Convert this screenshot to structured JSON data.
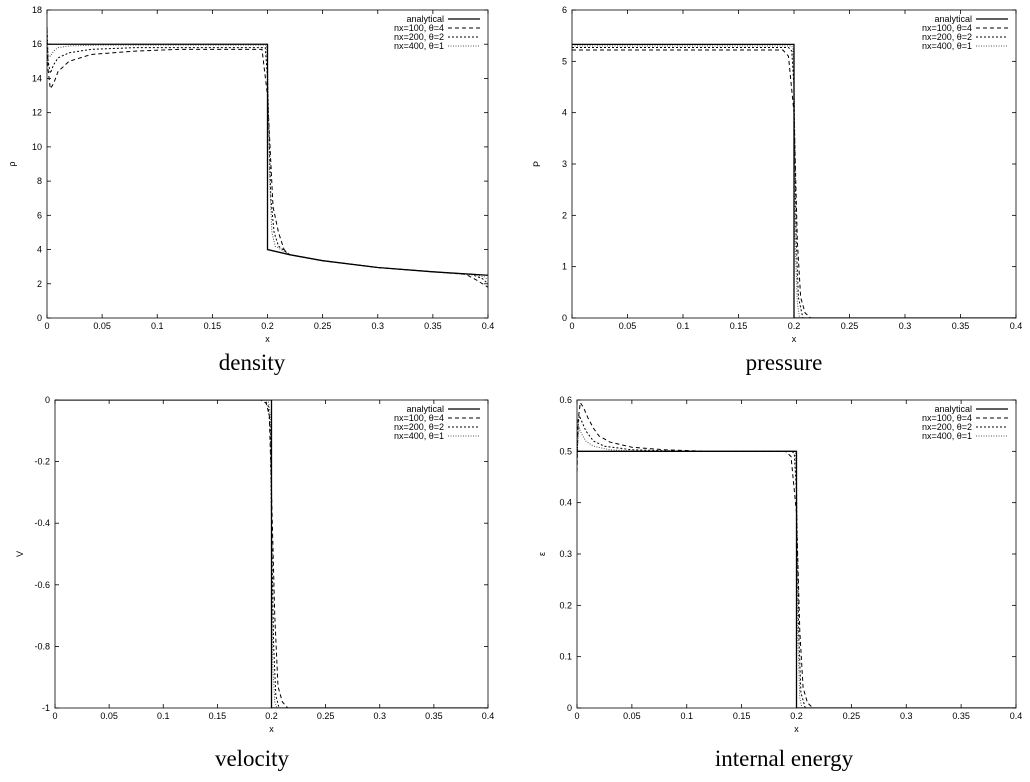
{
  "legend": [
    "analytical",
    "nx=100, θ=4",
    "nx=200, θ=2",
    "nx=400, θ=1"
  ],
  "chart_data": [
    {
      "type": "line",
      "caption": "density",
      "xlabel": "x",
      "ylabel": "ρ",
      "xlim": [
        0,
        0.4
      ],
      "ylim": [
        0,
        18
      ],
      "xticks": [
        "0",
        "0.05",
        "0.1",
        "0.15",
        "0.2",
        "0.25",
        "0.3",
        "0.35",
        "0.4"
      ],
      "yticks": [
        "0",
        "2",
        "4",
        "6",
        "8",
        "10",
        "12",
        "14",
        "16",
        "18"
      ],
      "legend_position": "top-right",
      "series": [
        {
          "name": "analytical",
          "x": [
            0,
            0.2,
            0.2,
            0.22,
            0.25,
            0.3,
            0.35,
            0.4
          ],
          "y": [
            16,
            16,
            4,
            3.7,
            3.35,
            2.95,
            2.7,
            2.5
          ]
        },
        {
          "name": "nx=100, θ=4",
          "x": [
            0,
            0.001,
            0.003,
            0.006,
            0.01,
            0.02,
            0.04,
            0.08,
            0.12,
            0.16,
            0.195,
            0.2,
            0.205,
            0.21,
            0.215,
            0.22,
            0.25,
            0.3,
            0.35,
            0.38,
            0.39,
            0.4
          ],
          "y": [
            17,
            14.5,
            13.4,
            13.7,
            14.4,
            15,
            15.4,
            15.6,
            15.7,
            15.7,
            15.7,
            13,
            6.5,
            5,
            4,
            3.7,
            3.35,
            2.95,
            2.7,
            2.55,
            2.2,
            1.8
          ]
        },
        {
          "name": "nx=200, θ=2",
          "x": [
            0,
            0.001,
            0.003,
            0.006,
            0.01,
            0.02,
            0.04,
            0.08,
            0.12,
            0.16,
            0.198,
            0.2,
            0.203,
            0.206,
            0.21,
            0.22,
            0.25,
            0.3,
            0.35,
            0.385,
            0.395,
            0.4
          ],
          "y": [
            17,
            15,
            14.3,
            14.8,
            15.2,
            15.5,
            15.7,
            15.8,
            15.8,
            15.8,
            15.8,
            14,
            7,
            5,
            4.2,
            3.7,
            3.35,
            2.95,
            2.7,
            2.55,
            2.3,
            2.0
          ]
        },
        {
          "name": "nx=400, θ=1",
          "x": [
            0,
            0.001,
            0.003,
            0.006,
            0.01,
            0.02,
            0.05,
            0.1,
            0.15,
            0.199,
            0.2,
            0.202,
            0.204,
            0.207,
            0.22,
            0.25,
            0.3,
            0.35,
            0.39,
            0.397,
            0.4
          ],
          "y": [
            16.6,
            15.4,
            15.3,
            15.6,
            15.8,
            15.9,
            15.95,
            15.95,
            15.95,
            15.95,
            15,
            8,
            5,
            4.2,
            3.7,
            3.35,
            2.95,
            2.7,
            2.5,
            2.4,
            2.2
          ]
        }
      ]
    },
    {
      "type": "line",
      "caption": "pressure",
      "xlabel": "x",
      "ylabel": "P",
      "xlim": [
        0,
        0.4
      ],
      "ylim": [
        0,
        6
      ],
      "xticks": [
        "0",
        "0.05",
        "0.1",
        "0.15",
        "0.2",
        "0.25",
        "0.3",
        "0.35",
        "0.4"
      ],
      "yticks": [
        "0",
        "1",
        "2",
        "3",
        "4",
        "5",
        "6"
      ],
      "legend_position": "top-right",
      "series": [
        {
          "name": "analytical",
          "x": [
            0,
            0.2,
            0.2,
            0.4
          ],
          "y": [
            5.33,
            5.33,
            0,
            0
          ]
        },
        {
          "name": "nx=100, θ=4",
          "x": [
            0,
            0.05,
            0.1,
            0.15,
            0.19,
            0.195,
            0.2,
            0.203,
            0.206,
            0.21,
            0.215,
            0.4
          ],
          "y": [
            5.22,
            5.22,
            5.22,
            5.22,
            5.22,
            5.1,
            4.0,
            1.5,
            0.4,
            0.1,
            0,
            0
          ]
        },
        {
          "name": "nx=200, θ=2",
          "x": [
            0,
            0.05,
            0.1,
            0.15,
            0.195,
            0.198,
            0.2,
            0.202,
            0.204,
            0.208,
            0.4
          ],
          "y": [
            5.27,
            5.27,
            5.27,
            5.27,
            5.27,
            5.2,
            4.5,
            1.5,
            0.4,
            0,
            0
          ]
        },
        {
          "name": "nx=400, θ=1",
          "x": [
            0,
            0.05,
            0.1,
            0.15,
            0.198,
            0.199,
            0.2,
            0.201,
            0.203,
            0.205,
            0.4
          ],
          "y": [
            5.3,
            5.3,
            5.3,
            5.3,
            5.3,
            5.25,
            4.8,
            1.5,
            0.3,
            0,
            0
          ]
        }
      ]
    },
    {
      "type": "line",
      "caption": "velocity",
      "xlabel": "x",
      "ylabel": "V",
      "xlim": [
        0,
        0.4
      ],
      "ylim": [
        -1,
        0
      ],
      "xticks": [
        "0",
        "0.05",
        "0.1",
        "0.15",
        "0.2",
        "0.25",
        "0.3",
        "0.35",
        "0.4"
      ],
      "yticks": [
        "-1",
        "-0.8",
        "-0.6",
        "-0.4",
        "-0.2",
        "0"
      ],
      "legend_position": "top-right",
      "series": [
        {
          "name": "analytical",
          "x": [
            0,
            0.2,
            0.2,
            0.4
          ],
          "y": [
            0,
            0,
            -1,
            -1
          ]
        },
        {
          "name": "nx=100, θ=4",
          "x": [
            0,
            0.19,
            0.195,
            0.198,
            0.2,
            0.203,
            0.206,
            0.21,
            0.215,
            0.4
          ],
          "y": [
            0,
            0,
            -0.01,
            -0.05,
            -0.3,
            -0.7,
            -0.93,
            -0.98,
            -1,
            -1
          ]
        },
        {
          "name": "nx=200, θ=2",
          "x": [
            0,
            0.194,
            0.197,
            0.199,
            0.2,
            0.202,
            0.204,
            0.207,
            0.4
          ],
          "y": [
            0,
            0,
            -0.02,
            -0.1,
            -0.4,
            -0.8,
            -0.96,
            -1,
            -1
          ]
        },
        {
          "name": "nx=400, θ=1",
          "x": [
            0,
            0.197,
            0.199,
            0.2,
            0.201,
            0.203,
            0.205,
            0.4
          ],
          "y": [
            0,
            0,
            -0.05,
            -0.4,
            -0.85,
            -0.98,
            -1,
            -1
          ]
        }
      ]
    },
    {
      "type": "line",
      "caption": "internal energy",
      "xlabel": "x",
      "ylabel": "ε",
      "xlim": [
        0,
        0.4
      ],
      "ylim": [
        0,
        0.6
      ],
      "xticks": [
        "0",
        "0.05",
        "0.1",
        "0.15",
        "0.2",
        "0.25",
        "0.3",
        "0.35",
        "0.4"
      ],
      "yticks": [
        "0",
        "0.1",
        "0.2",
        "0.3",
        "0.4",
        "0.5",
        "0.6"
      ],
      "legend_position": "top-right",
      "series": [
        {
          "name": "analytical",
          "x": [
            0,
            0.2,
            0.2,
            0.4
          ],
          "y": [
            0.5,
            0.5,
            0,
            0
          ]
        },
        {
          "name": "nx=100, θ=4",
          "x": [
            0,
            0.001,
            0.003,
            0.006,
            0.01,
            0.015,
            0.02,
            0.03,
            0.05,
            0.08,
            0.12,
            0.16,
            0.19,
            0.195,
            0.2,
            0.203,
            0.206,
            0.21,
            0.215,
            0.4
          ],
          "y": [
            0.46,
            0.56,
            0.595,
            0.585,
            0.565,
            0.545,
            0.53,
            0.518,
            0.508,
            0.503,
            0.5,
            0.5,
            0.5,
            0.49,
            0.38,
            0.15,
            0.04,
            0.01,
            0,
            0
          ]
        },
        {
          "name": "nx=200, θ=2",
          "x": [
            0,
            0.001,
            0.002,
            0.004,
            0.008,
            0.015,
            0.025,
            0.05,
            0.1,
            0.15,
            0.196,
            0.198,
            0.2,
            0.202,
            0.204,
            0.208,
            0.4
          ],
          "y": [
            0.48,
            0.55,
            0.57,
            0.56,
            0.54,
            0.52,
            0.51,
            0.503,
            0.5,
            0.5,
            0.5,
            0.495,
            0.42,
            0.15,
            0.03,
            0,
            0
          ]
        },
        {
          "name": "nx=400, θ=1",
          "x": [
            0,
            0.001,
            0.002,
            0.004,
            0.008,
            0.015,
            0.03,
            0.06,
            0.1,
            0.15,
            0.198,
            0.199,
            0.2,
            0.201,
            0.203,
            0.205,
            0.4
          ],
          "y": [
            0.49,
            0.53,
            0.545,
            0.535,
            0.52,
            0.51,
            0.503,
            0.5,
            0.5,
            0.5,
            0.5,
            0.497,
            0.45,
            0.15,
            0.02,
            0,
            0
          ]
        }
      ]
    }
  ]
}
